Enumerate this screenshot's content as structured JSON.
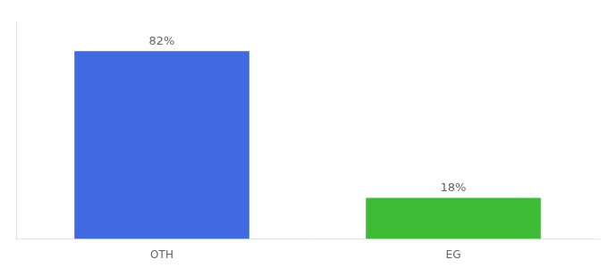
{
  "chart_data": {
    "type": "bar",
    "categories": [
      "OTH",
      "EG"
    ],
    "values": [
      82,
      18
    ],
    "value_labels": [
      "82%",
      "18%"
    ],
    "colors": [
      "#4169e1",
      "#3dbb35"
    ],
    "ylim": [
      0,
      95
    ],
    "data_labels": true,
    "tick_labels": "x",
    "grid": false
  }
}
